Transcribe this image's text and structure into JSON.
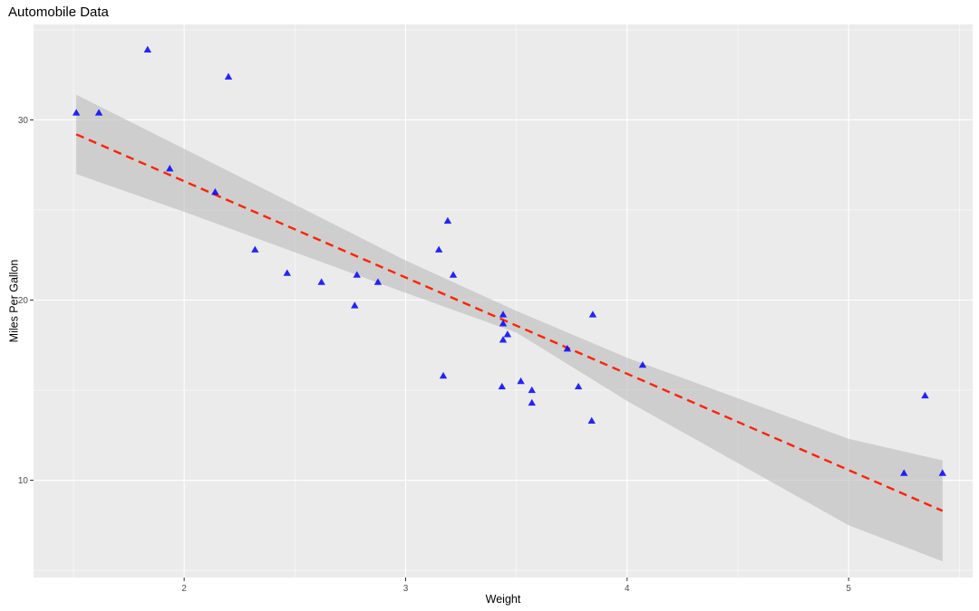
{
  "chart_data": {
    "type": "scatter",
    "title": "Automobile Data",
    "xlabel": "Weight",
    "ylabel": "Miles Per Gallon",
    "xlim": [
      1.32,
      5.56
    ],
    "ylim": [
      4.6,
      35.3
    ],
    "x_ticks": [
      2,
      3,
      4,
      5
    ],
    "y_ticks": [
      10,
      20,
      30
    ],
    "x_tick_labels": [
      "2",
      "3",
      "4",
      "5"
    ],
    "y_tick_labels": [
      "10",
      "20",
      "30"
    ],
    "grid": true,
    "points": [
      [
        1.513,
        30.4
      ],
      [
        1.615,
        30.4
      ],
      [
        1.835,
        33.9
      ],
      [
        1.935,
        27.3
      ],
      [
        2.14,
        26.0
      ],
      [
        2.2,
        32.4
      ],
      [
        2.32,
        22.8
      ],
      [
        2.465,
        21.5
      ],
      [
        2.62,
        21.0
      ],
      [
        2.77,
        19.7
      ],
      [
        2.78,
        21.4
      ],
      [
        2.875,
        21.0
      ],
      [
        3.15,
        22.8
      ],
      [
        3.17,
        15.8
      ],
      [
        3.19,
        24.4
      ],
      [
        3.215,
        21.4
      ],
      [
        3.435,
        15.2
      ],
      [
        3.44,
        17.8
      ],
      [
        3.44,
        18.7
      ],
      [
        3.44,
        19.2
      ],
      [
        3.46,
        18.1
      ],
      [
        3.52,
        15.5
      ],
      [
        3.57,
        15.0
      ],
      [
        3.57,
        14.3
      ],
      [
        3.73,
        17.3
      ],
      [
        3.78,
        15.2
      ],
      [
        3.84,
        13.3
      ],
      [
        3.845,
        19.2
      ],
      [
        4.07,
        16.4
      ],
      [
        5.25,
        10.4
      ],
      [
        5.345,
        14.7
      ],
      [
        5.424,
        10.4
      ]
    ],
    "fit": {
      "x_range": [
        1.513,
        5.424
      ],
      "intercept": 37.285,
      "slope": -5.344,
      "ci_upper": [
        [
          1.513,
          31.4
        ],
        [
          2.0,
          28.4
        ],
        [
          3.0,
          22.2
        ],
        [
          3.5,
          19.4
        ],
        [
          4.0,
          16.8
        ],
        [
          5.0,
          12.3
        ],
        [
          5.424,
          11.1
        ]
      ],
      "ci_lower": [
        [
          1.513,
          27.0
        ],
        [
          2.0,
          24.9
        ],
        [
          3.0,
          20.4
        ],
        [
          3.5,
          18.2
        ],
        [
          4.0,
          14.4
        ],
        [
          5.0,
          7.5
        ],
        [
          5.424,
          5.5
        ]
      ]
    },
    "colors": {
      "panel_bg": "#ebebeb",
      "point": "#0000ff",
      "fit_line": "#ff2200",
      "ci_band": "#bdbdbd"
    }
  }
}
